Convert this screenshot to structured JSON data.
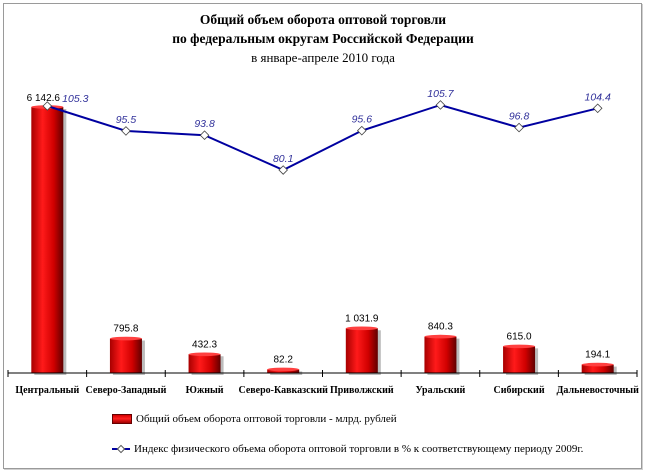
{
  "chart_data": {
    "type": "bar+line",
    "title": [
      "Общий объем оборота оптовой торговли",
      "по федеральным округам Российской Федерации"
    ],
    "subtitle": "в январе-апреле 2010 года",
    "categories": [
      "Центральный",
      "Северо-Западный",
      "Южный",
      "Северо-Кавказский",
      "Приволжский",
      "Уральский",
      "Сибирский",
      "Дальневосточный"
    ],
    "series": [
      {
        "name": "Общий объем оборота оптовой торговли - млрд. рублей",
        "type": "bar",
        "values": [
          6142.6,
          795.8,
          432.3,
          82.2,
          1031.9,
          840.3,
          615.0,
          194.1
        ],
        "labels": [
          "6 142.6",
          "795.8",
          "432.3",
          "82.2",
          "1 031.9",
          "840.3",
          "615.0",
          "194.1"
        ],
        "color": "#e00000"
      },
      {
        "name": "Индекс физического объема оборота оптовой торговли в % к соответствующему периоду 2009г.",
        "type": "line",
        "values": [
          105.3,
          95.5,
          93.8,
          80.1,
          95.6,
          105.7,
          96.8,
          104.4
        ],
        "labels": [
          "105.3",
          "95.5",
          "93.8",
          "80.1",
          "95.6",
          "105.7",
          "96.8",
          "104.4"
        ],
        "color": "#0000a0"
      }
    ],
    "grid": false,
    "legend": "bottom"
  }
}
